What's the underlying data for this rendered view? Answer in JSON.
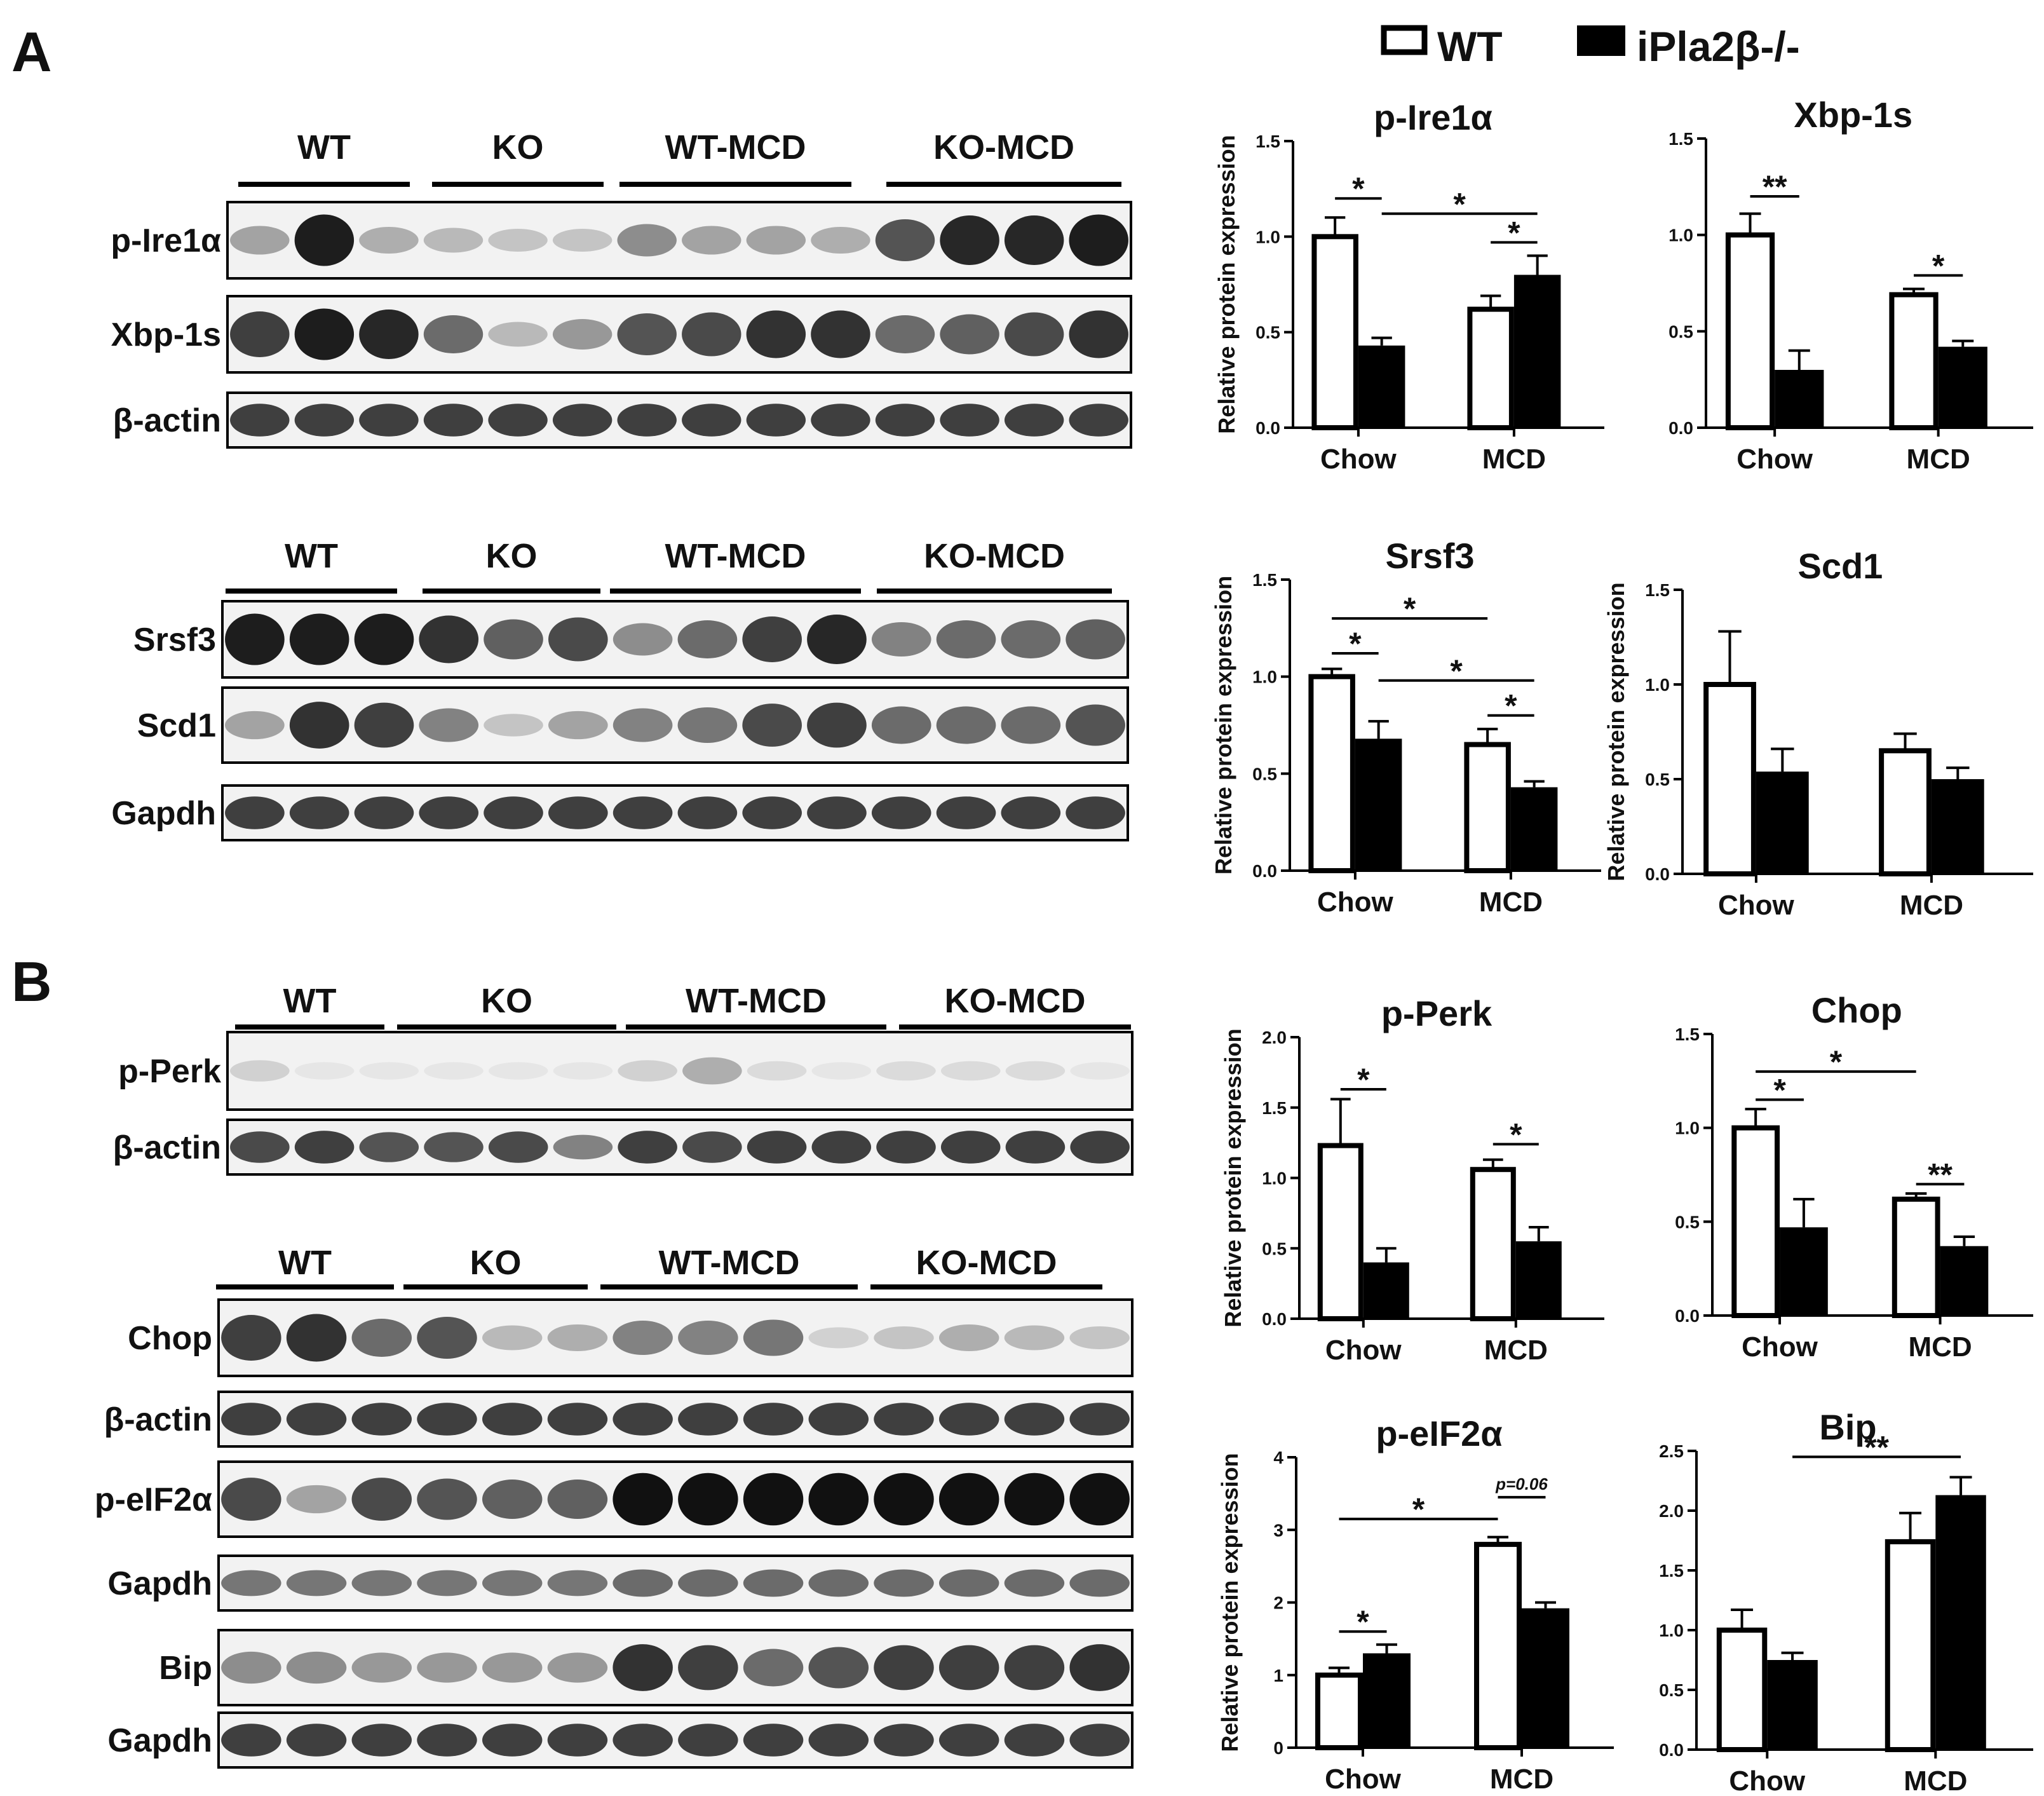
{
  "panels": {
    "a": "A",
    "b": "B"
  },
  "legend": {
    "wt": "WT",
    "ko": "iPla2β-/-"
  },
  "y_axis_label": "Relative protein expression",
  "blots": [
    {
      "id": "blot1",
      "groups": [
        "WT",
        "KO",
        "WT-MCD",
        "KO-MCD"
      ],
      "rows": [
        {
          "label": "p-Ire1α",
          "intensities": [
            0.35,
            0.95,
            0.3,
            0.25,
            0.2,
            0.2,
            0.45,
            0.35,
            0.35,
            0.3,
            0.7,
            0.9,
            0.9,
            0.95
          ]
        },
        {
          "label": "Xbp-1s",
          "intensities": [
            0.8,
            0.95,
            0.9,
            0.6,
            0.25,
            0.4,
            0.7,
            0.75,
            0.85,
            0.85,
            0.6,
            0.65,
            0.75,
            0.85
          ]
        },
        {
          "label": "β-actin",
          "intensities": [
            0.8,
            0.8,
            0.8,
            0.8,
            0.8,
            0.8,
            0.8,
            0.8,
            0.8,
            0.8,
            0.8,
            0.8,
            0.8,
            0.8
          ]
        }
      ]
    },
    {
      "id": "blot2",
      "groups": [
        "WT",
        "KO",
        "WT-MCD",
        "KO-MCD"
      ],
      "rows": [
        {
          "label": "Srsf3",
          "intensities": [
            0.95,
            0.95,
            0.95,
            0.85,
            0.65,
            0.75,
            0.45,
            0.6,
            0.8,
            0.9,
            0.5,
            0.6,
            0.6,
            0.65
          ]
        },
        {
          "label": "Scd1",
          "intensities": [
            0.35,
            0.85,
            0.8,
            0.5,
            0.2,
            0.35,
            0.5,
            0.55,
            0.75,
            0.8,
            0.6,
            0.6,
            0.6,
            0.7
          ]
        },
        {
          "label": "Gapdh",
          "intensities": [
            0.8,
            0.8,
            0.8,
            0.8,
            0.8,
            0.8,
            0.8,
            0.8,
            0.8,
            0.8,
            0.8,
            0.8,
            0.8,
            0.8
          ]
        }
      ]
    },
    {
      "id": "blot3",
      "groups": [
        "WT",
        "KO",
        "WT-MCD",
        "KO-MCD"
      ],
      "rows": [
        {
          "label": "p-Perk",
          "intensities": [
            0.15,
            0.05,
            0.05,
            0.05,
            0.05,
            0.05,
            0.15,
            0.3,
            0.1,
            0.05,
            0.1,
            0.1,
            0.1,
            0.05
          ]
        },
        {
          "label": "β-actin",
          "intensities": [
            0.75,
            0.8,
            0.7,
            0.7,
            0.75,
            0.5,
            0.8,
            0.75,
            0.8,
            0.8,
            0.8,
            0.8,
            0.8,
            0.8
          ]
        }
      ]
    },
    {
      "id": "blot4",
      "groups": [
        "WT",
        "KO",
        "WT-MCD",
        "KO-MCD"
      ],
      "rows": [
        {
          "label": "Chop",
          "intensities": [
            0.8,
            0.85,
            0.6,
            0.7,
            0.25,
            0.3,
            0.5,
            0.5,
            0.55,
            0.15,
            0.2,
            0.3,
            0.25,
            0.2
          ]
        },
        {
          "label": "β-actin",
          "intensities": [
            0.8,
            0.8,
            0.8,
            0.8,
            0.8,
            0.8,
            0.8,
            0.8,
            0.8,
            0.8,
            0.8,
            0.8,
            0.8,
            0.8
          ]
        },
        {
          "label": "p-eIF2α",
          "intensities": [
            0.75,
            0.35,
            0.75,
            0.7,
            0.65,
            0.65,
            1.0,
            1.0,
            1.0,
            1.0,
            1.0,
            1.0,
            1.0,
            1.0
          ]
        },
        {
          "label": "Gapdh",
          "intensities": [
            0.55,
            0.55,
            0.55,
            0.55,
            0.55,
            0.55,
            0.6,
            0.6,
            0.6,
            0.6,
            0.6,
            0.6,
            0.6,
            0.6
          ]
        },
        {
          "label": "Bip",
          "intensities": [
            0.45,
            0.45,
            0.4,
            0.4,
            0.4,
            0.4,
            0.85,
            0.8,
            0.6,
            0.7,
            0.8,
            0.8,
            0.8,
            0.85
          ]
        },
        {
          "label": "Gapdh",
          "intensities": [
            0.8,
            0.8,
            0.8,
            0.8,
            0.8,
            0.8,
            0.8,
            0.8,
            0.8,
            0.8,
            0.8,
            0.8,
            0.8,
            0.8
          ]
        }
      ]
    }
  ],
  "chart_data": [
    {
      "type": "bar",
      "title": "p-Ire1α",
      "categories": [
        "Chow",
        "MCD"
      ],
      "series": [
        {
          "name": "WT",
          "values": [
            1.0,
            0.62
          ],
          "errors": [
            0.1,
            0.07
          ]
        },
        {
          "name": "iPla2β-/-",
          "values": [
            0.43,
            0.8
          ],
          "errors": [
            0.04,
            0.1
          ]
        }
      ],
      "ylim": [
        0,
        1.5
      ],
      "yticks": [
        "0.0",
        "0.5",
        "1.0",
        "1.5"
      ],
      "ylabel": "Relative protein expression",
      "annotations": [
        {
          "from": [
            0,
            0
          ],
          "to": [
            0,
            1
          ],
          "level": 1.2,
          "text": "*"
        },
        {
          "from": [
            0,
            1
          ],
          "to": [
            1,
            1
          ],
          "level": 1.12,
          "text": "*"
        },
        {
          "from": [
            1,
            0
          ],
          "to": [
            1,
            1
          ],
          "level": 0.97,
          "text": "*"
        }
      ]
    },
    {
      "type": "bar",
      "title": "Xbp-1s",
      "categories": [
        "Chow",
        "MCD"
      ],
      "series": [
        {
          "name": "WT",
          "values": [
            1.0,
            0.69
          ],
          "errors": [
            0.11,
            0.03
          ]
        },
        {
          "name": "iPla2β-/-",
          "values": [
            0.3,
            0.42
          ],
          "errors": [
            0.1,
            0.03
          ]
        }
      ],
      "ylim": [
        0,
        1.5
      ],
      "yticks": [
        "0.0",
        "0.5",
        "1.0",
        "1.5"
      ],
      "ylabel": "",
      "annotations": [
        {
          "from": [
            0,
            0
          ],
          "to": [
            0,
            1
          ],
          "level": 1.2,
          "text": "**"
        },
        {
          "from": [
            1,
            0
          ],
          "to": [
            1,
            1
          ],
          "level": 0.79,
          "text": "*"
        }
      ]
    },
    {
      "type": "bar",
      "title": "Srsf3",
      "categories": [
        "Chow",
        "MCD"
      ],
      "series": [
        {
          "name": "WT",
          "values": [
            1.0,
            0.65
          ],
          "errors": [
            0.04,
            0.08
          ]
        },
        {
          "name": "iPla2β-/-",
          "values": [
            0.68,
            0.43
          ],
          "errors": [
            0.09,
            0.03
          ]
        }
      ],
      "ylim": [
        0,
        1.5
      ],
      "yticks": [
        "0.0",
        "0.5",
        "1.0",
        "1.5"
      ],
      "ylabel": "Relative protein expression",
      "annotations": [
        {
          "from": [
            0,
            0
          ],
          "to": [
            1,
            0
          ],
          "level": 1.3,
          "text": "*"
        },
        {
          "from": [
            0,
            0
          ],
          "to": [
            0,
            1
          ],
          "level": 1.12,
          "text": "*"
        },
        {
          "from": [
            0,
            1
          ],
          "to": [
            1,
            1
          ],
          "level": 0.98,
          "text": "*"
        },
        {
          "from": [
            1,
            0
          ],
          "to": [
            1,
            1
          ],
          "level": 0.8,
          "text": "*"
        }
      ]
    },
    {
      "type": "bar",
      "title": "Scd1",
      "categories": [
        "Chow",
        "MCD"
      ],
      "series": [
        {
          "name": "WT",
          "values": [
            1.0,
            0.65
          ],
          "errors": [
            0.28,
            0.09
          ]
        },
        {
          "name": "iPla2β-/-",
          "values": [
            0.54,
            0.5
          ],
          "errors": [
            0.12,
            0.06
          ]
        }
      ],
      "ylim": [
        0,
        1.5
      ],
      "yticks": [
        "0.0",
        "0.5",
        "1.0",
        "1.5"
      ],
      "ylabel": "Relative protein expression",
      "annotations": []
    },
    {
      "type": "bar",
      "title": "p-Perk",
      "categories": [
        "Chow",
        "MCD"
      ],
      "series": [
        {
          "name": "WT",
          "values": [
            1.23,
            1.06
          ],
          "errors": [
            0.33,
            0.07
          ]
        },
        {
          "name": "iPla2β-/-",
          "values": [
            0.4,
            0.55
          ],
          "errors": [
            0.1,
            0.1
          ]
        }
      ],
      "ylim": [
        0,
        2.0
      ],
      "yticks": [
        "0.0",
        "0.5",
        "1.0",
        "1.5",
        "2.0"
      ],
      "ylabel": "Relative protein expression",
      "annotations": [
        {
          "from": [
            0,
            0
          ],
          "to": [
            0,
            1
          ],
          "level": 1.63,
          "text": "*"
        },
        {
          "from": [
            1,
            0
          ],
          "to": [
            1,
            1
          ],
          "level": 1.24,
          "text": "*"
        }
      ]
    },
    {
      "type": "bar",
      "title": "Chop",
      "categories": [
        "Chow",
        "MCD"
      ],
      "series": [
        {
          "name": "WT",
          "values": [
            1.0,
            0.62
          ],
          "errors": [
            0.1,
            0.03
          ]
        },
        {
          "name": "iPla2β-/-",
          "values": [
            0.47,
            0.37
          ],
          "errors": [
            0.15,
            0.05
          ]
        }
      ],
      "ylim": [
        0,
        1.5
      ],
      "yticks": [
        "0.0",
        "0.5",
        "1.0",
        "1.5"
      ],
      "ylabel": "",
      "annotations": [
        {
          "from": [
            0,
            0
          ],
          "to": [
            1,
            0
          ],
          "level": 1.3,
          "text": "*"
        },
        {
          "from": [
            0,
            0
          ],
          "to": [
            0,
            1
          ],
          "level": 1.15,
          "text": "*"
        },
        {
          "from": [
            1,
            0
          ],
          "to": [
            1,
            1
          ],
          "level": 0.7,
          "text": "**"
        }
      ]
    },
    {
      "type": "bar",
      "title": "p-eIF2α",
      "categories": [
        "Chow",
        "MCD"
      ],
      "series": [
        {
          "name": "WT",
          "values": [
            1.0,
            2.8
          ],
          "errors": [
            0.1,
            0.1
          ]
        },
        {
          "name": "iPla2β-/-",
          "values": [
            1.3,
            1.92
          ],
          "errors": [
            0.12,
            0.08
          ]
        }
      ],
      "ylim": [
        0,
        4
      ],
      "yticks": [
        "0",
        "1",
        "2",
        "3",
        "4"
      ],
      "ylabel": "Relative protein expression",
      "annotations": [
        {
          "from": [
            0,
            0
          ],
          "to": [
            1,
            0
          ],
          "level": 3.15,
          "text": "*"
        },
        {
          "from": [
            0,
            0
          ],
          "to": [
            0,
            1
          ],
          "level": 1.6,
          "text": "*"
        },
        {
          "from": [
            1,
            0
          ],
          "to": [
            1,
            1
          ],
          "level": 3.45,
          "text": "p=0.06",
          "italic": true
        }
      ]
    },
    {
      "type": "bar",
      "title": "Bip",
      "categories": [
        "Chow",
        "MCD"
      ],
      "series": [
        {
          "name": "WT",
          "values": [
            1.0,
            1.74
          ],
          "errors": [
            0.17,
            0.24
          ]
        },
        {
          "name": "iPla2β-/-",
          "values": [
            0.75,
            2.13
          ],
          "errors": [
            0.06,
            0.15
          ]
        }
      ],
      "ylim": [
        0,
        2.5
      ],
      "yticks": [
        "0.0",
        "0.5",
        "1.0",
        "1.5",
        "2.0",
        "2.5"
      ],
      "ylabel": "",
      "annotations": [
        {
          "from": [
            0,
            1
          ],
          "to": [
            1,
            1
          ],
          "level": 2.45,
          "text": "**"
        }
      ]
    }
  ]
}
